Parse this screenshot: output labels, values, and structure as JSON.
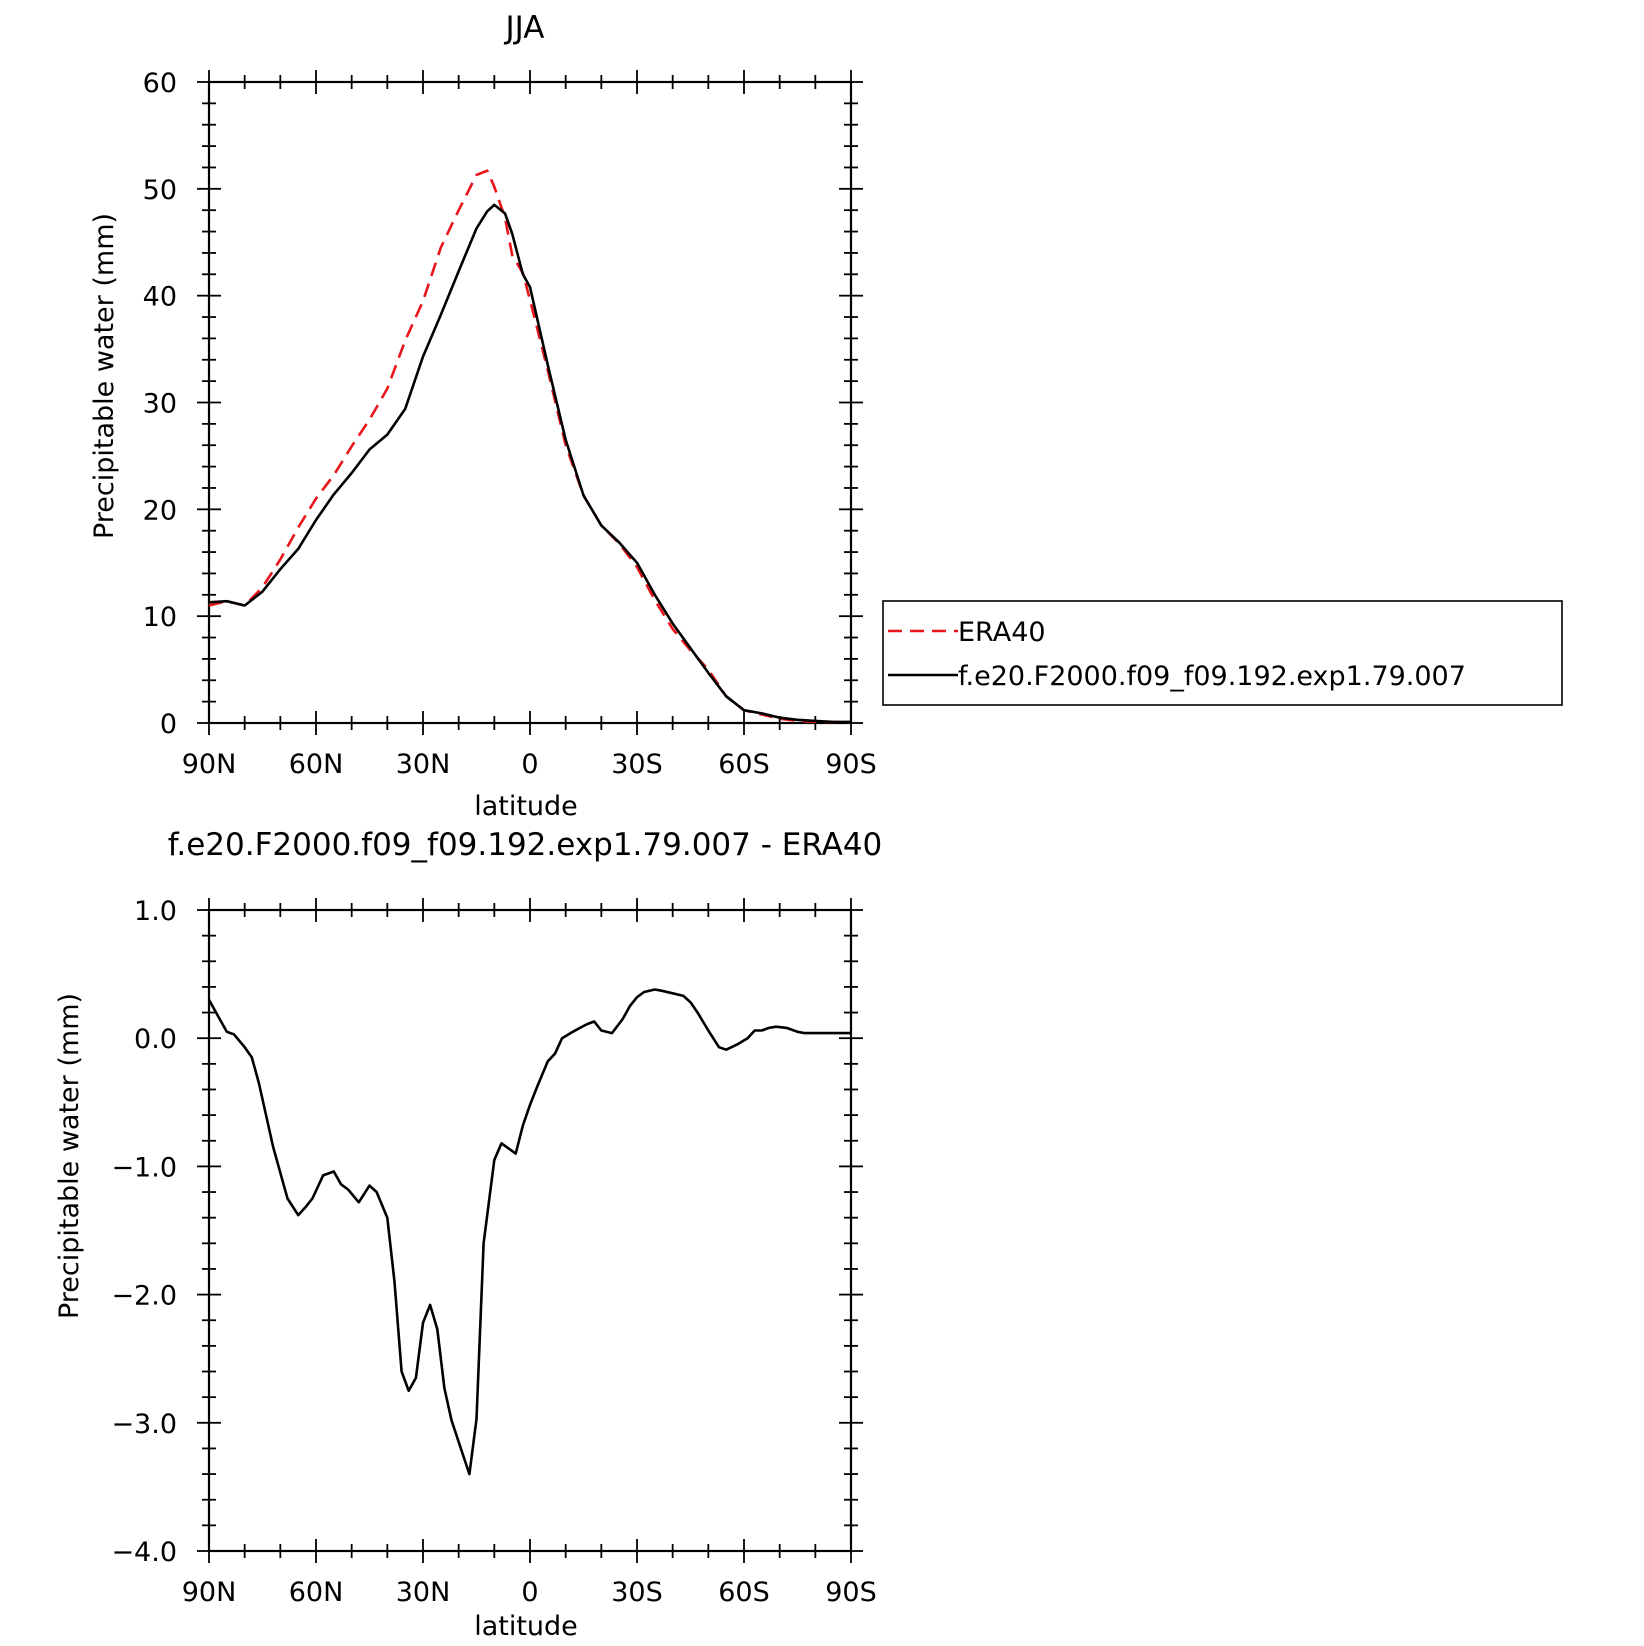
{
  "chart_data": [
    {
      "type": "line",
      "title": "JJA",
      "xlabel": "latitude",
      "ylabel": "Precipitable water (mm)",
      "xlim": [
        90,
        -90
      ],
      "ylim": [
        0,
        60
      ],
      "x_ticks": [
        90,
        60,
        30,
        0,
        -30,
        -60,
        -90
      ],
      "x_tick_labels": [
        "90N",
        "60N",
        "30N",
        "0",
        "30S",
        "60S",
        "90S"
      ],
      "y_ticks": [
        0,
        10,
        20,
        30,
        40,
        50,
        60
      ],
      "y_tick_labels": [
        "0",
        "10",
        "20",
        "30",
        "40",
        "50",
        "60"
      ],
      "legend": {
        "position": "right",
        "entries": [
          "ERA40",
          "f.e20.F2000.f09_f09.192.exp1.79.007"
        ]
      },
      "series": [
        {
          "name": "ERA40",
          "color": "#e8161b",
          "dash": "dashed",
          "x": [
            90,
            85,
            80,
            75,
            70,
            65,
            60,
            55,
            50,
            45,
            40,
            35,
            30,
            25,
            20,
            15,
            12,
            10,
            7,
            5,
            2,
            0,
            -5,
            -10,
            -15,
            -20,
            -25,
            -30,
            -35,
            -40,
            -45,
            -50,
            -55,
            -60,
            -65,
            -70,
            -75,
            -80,
            -85,
            -88,
            -90
          ],
          "values": [
            11.0,
            11.4,
            11.0,
            12.7,
            15.3,
            18.3,
            21.0,
            23.2,
            25.9,
            28.4,
            31.3,
            35.8,
            39.5,
            44.5,
            48.0,
            51.3,
            51.7,
            50.2,
            47.3,
            43.8,
            42.1,
            39.6,
            33.0,
            26.0,
            21.3,
            18.5,
            16.8,
            14.6,
            11.5,
            8.8,
            6.8,
            5.0,
            2.5,
            1.2,
            0.8,
            0.4,
            0.2,
            0.1,
            0.1,
            0.1,
            0.1
          ]
        },
        {
          "name": "f.e20.F2000.f09_f09.192.exp1.79.007",
          "color": "#000000",
          "dash": "solid",
          "x": [
            90,
            85,
            80,
            75,
            70,
            65,
            60,
            55,
            50,
            45,
            40,
            35,
            30,
            25,
            20,
            15,
            12,
            10,
            7,
            5,
            2,
            0,
            -5,
            -10,
            -15,
            -20,
            -25,
            -30,
            -35,
            -40,
            -45,
            -50,
            -55,
            -60,
            -65,
            -70,
            -75,
            -80,
            -85,
            -88,
            -90
          ],
          "values": [
            11.3,
            11.4,
            11.0,
            12.3,
            14.4,
            16.3,
            19.0,
            21.4,
            23.4,
            25.6,
            27.0,
            29.4,
            34.3,
            38.2,
            42.3,
            46.3,
            47.9,
            48.5,
            47.7,
            45.8,
            42.0,
            40.8,
            33.5,
            26.5,
            21.3,
            18.5,
            16.9,
            15.0,
            12.0,
            9.3,
            7.0,
            4.7,
            2.5,
            1.2,
            0.9,
            0.5,
            0.3,
            0.2,
            0.1,
            0.1,
            0.1
          ]
        }
      ]
    },
    {
      "type": "line",
      "title": "f.e20.F2000.f09_f09.192.exp1.79.007 - ERA40",
      "xlabel": "latitude",
      "ylabel": "Precipitable water (mm)",
      "xlim": [
        90,
        -90
      ],
      "ylim": [
        -4.0,
        1.0
      ],
      "x_ticks": [
        90,
        60,
        30,
        0,
        -30,
        -60,
        -90
      ],
      "x_tick_labels": [
        "90N",
        "60N",
        "30N",
        "0",
        "30S",
        "60S",
        "90S"
      ],
      "y_ticks": [
        -4,
        -3,
        -2,
        -1,
        0,
        1
      ],
      "y_tick_labels": [
        "−4.0",
        "−3.0",
        "−2.0",
        "−1.0",
        "0.0",
        "1.0"
      ],
      "series": [
        {
          "color": "#000000",
          "dash": "solid",
          "x": [
            90,
            88,
            85,
            83,
            80,
            78,
            76,
            72,
            68,
            65,
            63,
            61,
            58,
            55,
            53,
            51,
            48,
            45,
            43,
            40,
            38,
            36,
            34,
            32,
            30,
            28,
            26,
            24,
            22,
            20,
            17,
            15,
            13,
            10,
            8,
            6,
            4,
            2,
            0,
            -2,
            -5,
            -7,
            -9,
            -12,
            -14,
            -16,
            -18,
            -20,
            -23,
            -26,
            -28,
            -30,
            -32,
            -35,
            -37,
            -40,
            -43,
            -45,
            -47,
            -50,
            -53,
            -55,
            -58,
            -61,
            -63,
            -65,
            -67,
            -69,
            -72,
            -75,
            -77,
            -80,
            -83,
            -85,
            -87,
            -90
          ],
          "values": [
            0.3,
            0.2,
            0.05,
            0.03,
            -0.07,
            -0.15,
            -0.35,
            -0.85,
            -1.25,
            -1.38,
            -1.32,
            -1.25,
            -1.07,
            -1.04,
            -1.14,
            -1.18,
            -1.28,
            -1.15,
            -1.2,
            -1.4,
            -1.9,
            -2.6,
            -2.75,
            -2.65,
            -2.22,
            -2.08,
            -2.27,
            -2.73,
            -2.98,
            -3.15,
            -3.4,
            -2.97,
            -1.6,
            -0.95,
            -0.82,
            -0.86,
            -0.9,
            -0.68,
            -0.52,
            -0.38,
            -0.18,
            -0.12,
            0.0,
            0.05,
            0.08,
            0.11,
            0.13,
            0.06,
            0.04,
            0.15,
            0.25,
            0.32,
            0.36,
            0.38,
            0.37,
            0.35,
            0.33,
            0.28,
            0.2,
            0.06,
            -0.07,
            -0.09,
            -0.05,
            0.0,
            0.06,
            0.06,
            0.08,
            0.09,
            0.08,
            0.05,
            0.04,
            0.04,
            0.04,
            0.04,
            0.04,
            0.04
          ]
        }
      ]
    }
  ]
}
